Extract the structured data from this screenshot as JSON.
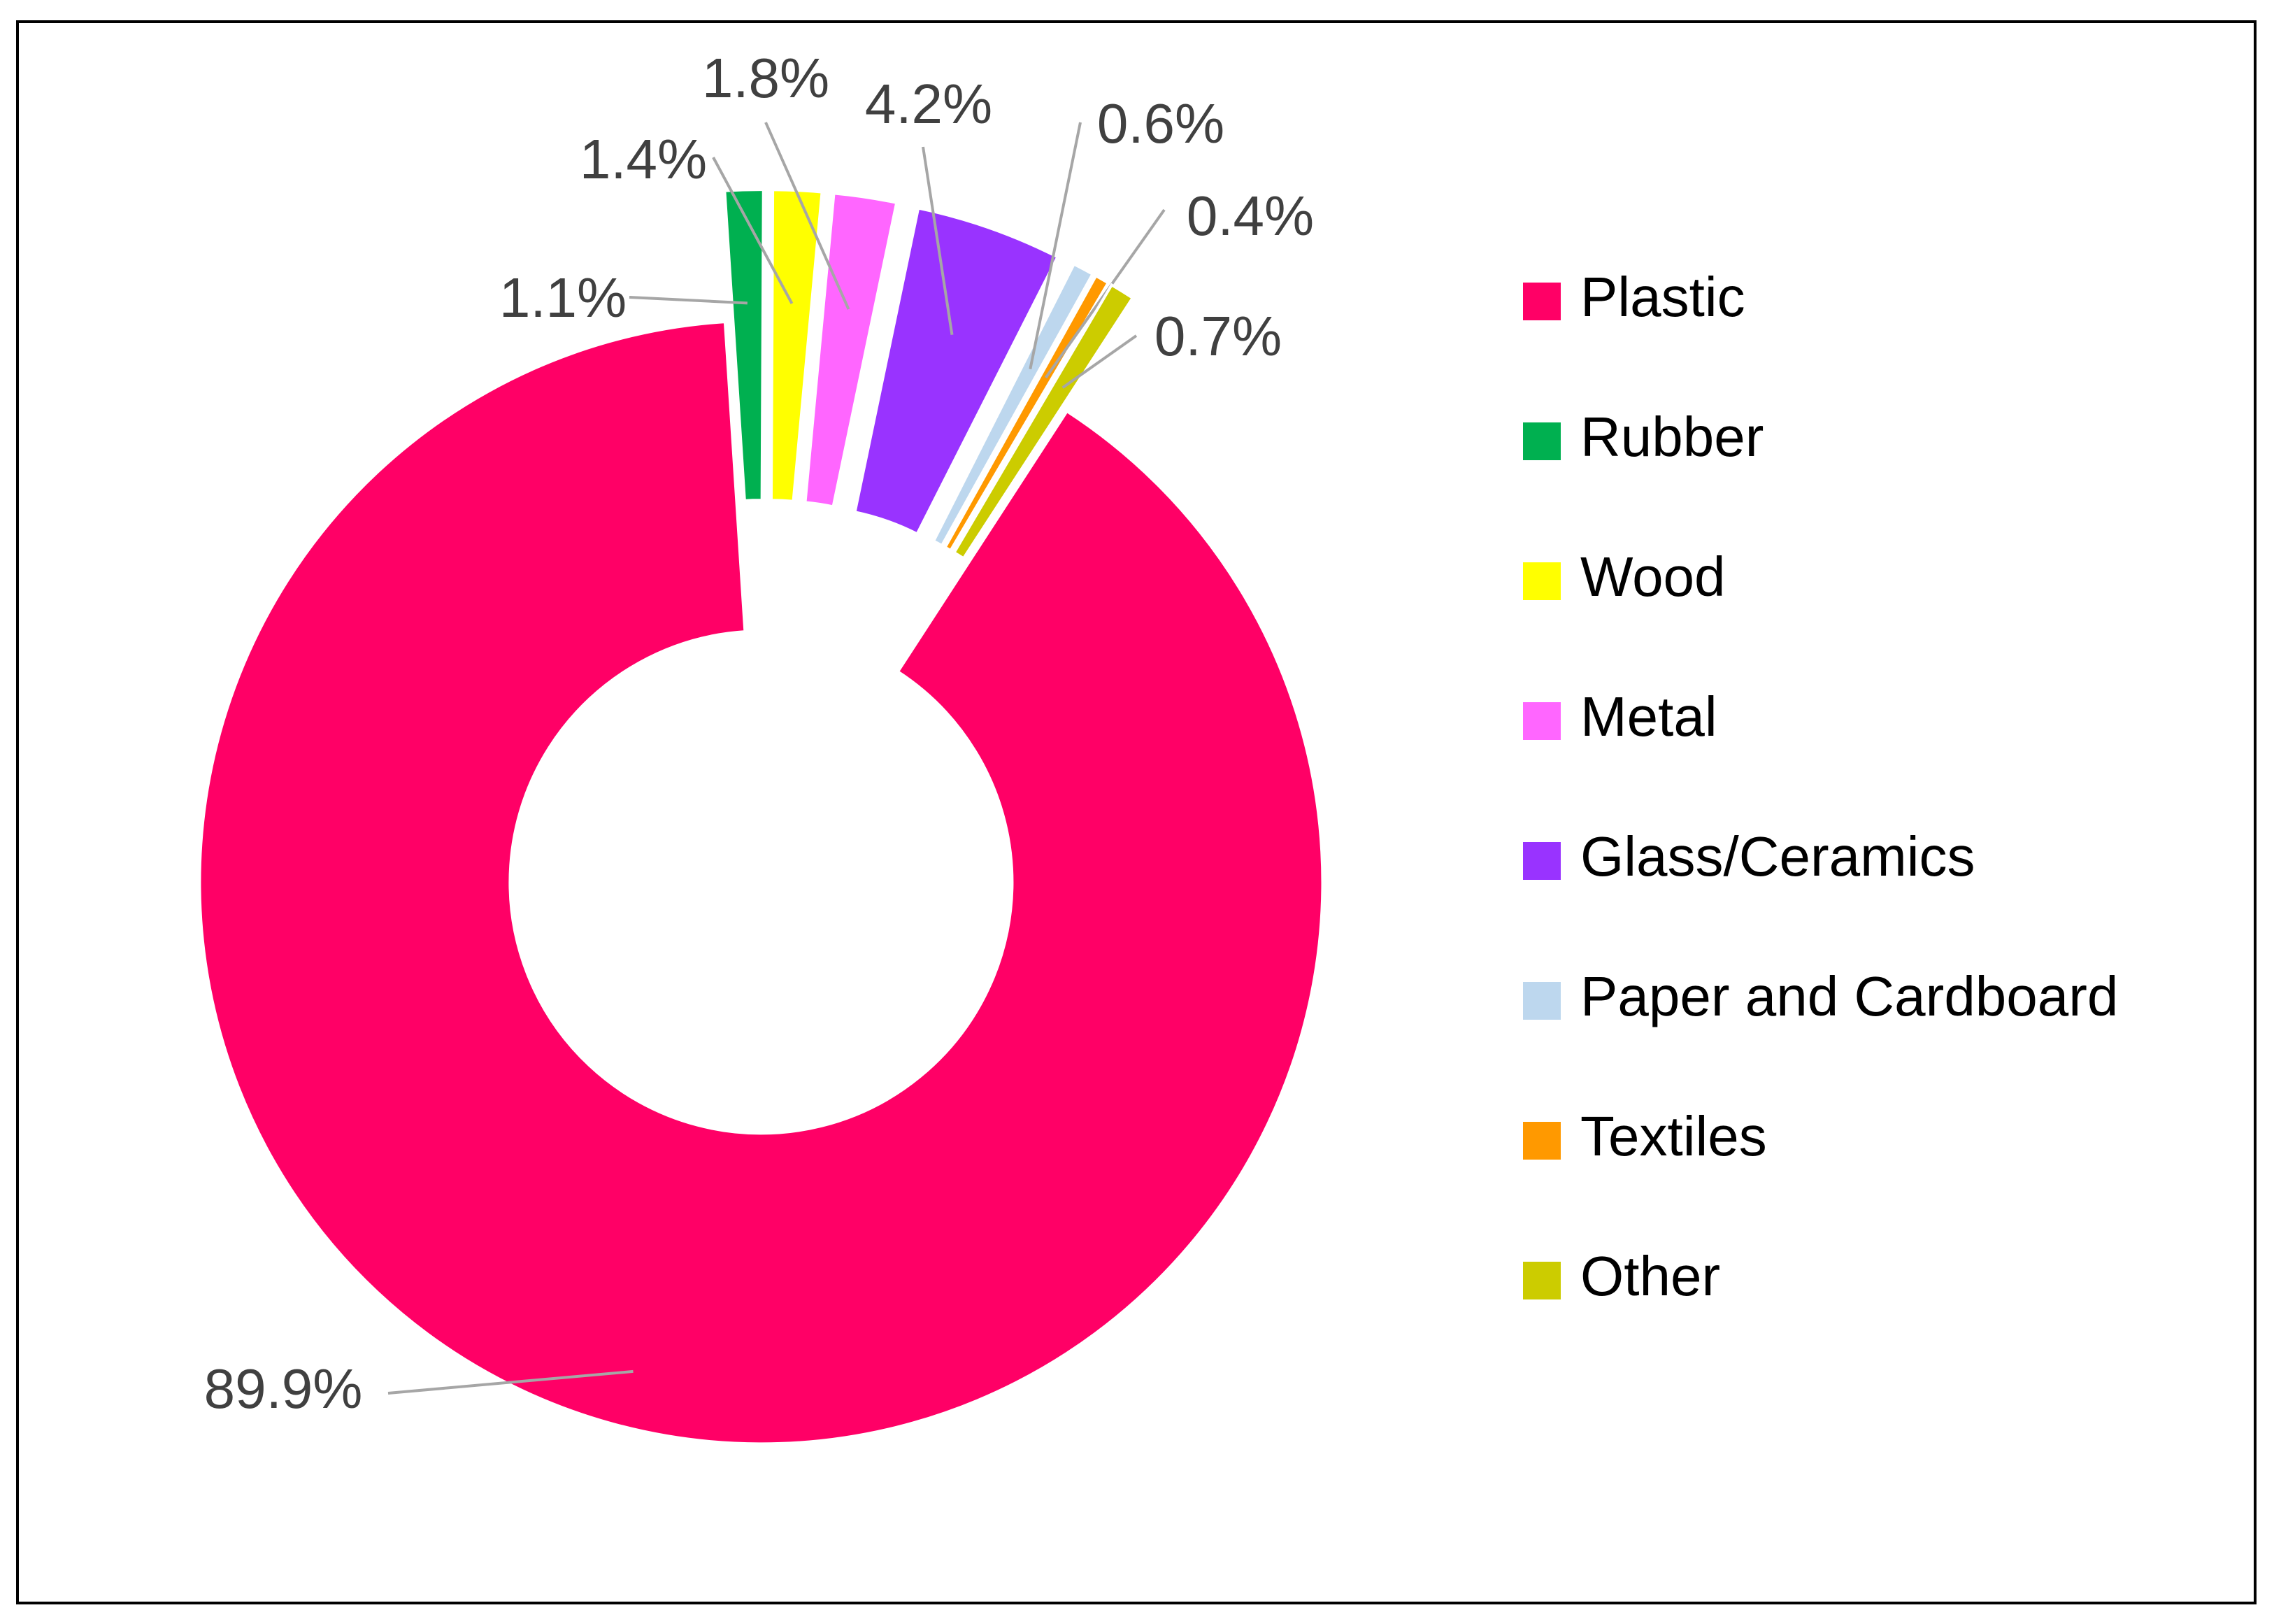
{
  "chart_data": {
    "type": "donut",
    "categories": [
      "Plastic",
      "Rubber",
      "Wood",
      "Metal",
      "Glass/Ceramics",
      "Paper and Cardboard",
      "Textiles",
      "Other"
    ],
    "values": [
      89.9,
      1.1,
      1.4,
      1.8,
      4.2,
      0.6,
      0.4,
      0.7
    ],
    "value_labels": [
      "89.9%",
      "1.1%",
      "1.4%",
      "1.8%",
      "4.2%",
      "0.6%",
      "0.4%",
      "0.7%"
    ],
    "colors": [
      "#ff0066",
      "#00b050",
      "#ffff00",
      "#ff66ff",
      "#9933ff",
      "#bdd7ee",
      "#ff9900",
      "#cccc00"
    ],
    "legend": "right"
  }
}
